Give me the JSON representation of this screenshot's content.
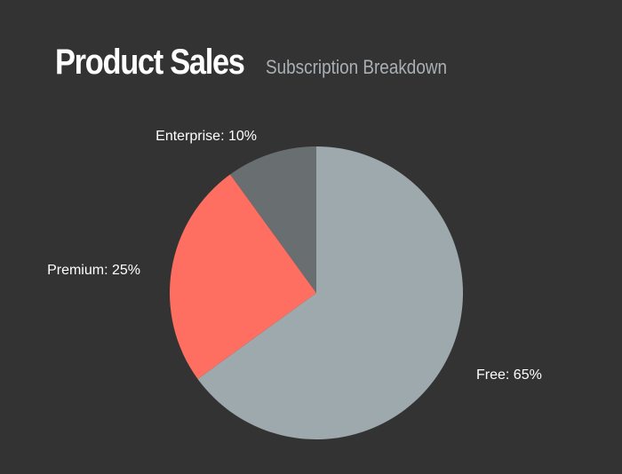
{
  "chart_data": {
    "type": "pie",
    "title": "Product Sales",
    "subtitle": "Subscription Breakdown",
    "slices": [
      {
        "label": "Free",
        "value": 65,
        "display": "Free: 65%",
        "color": "#9ea9ad"
      },
      {
        "label": "Premium",
        "value": 25,
        "display": "Premium: 25%",
        "color": "#ff6f61"
      },
      {
        "label": "Enterprise",
        "value": 10,
        "display": "Enterprise: 10%",
        "color": "#696f71"
      }
    ],
    "background": "#333333"
  }
}
